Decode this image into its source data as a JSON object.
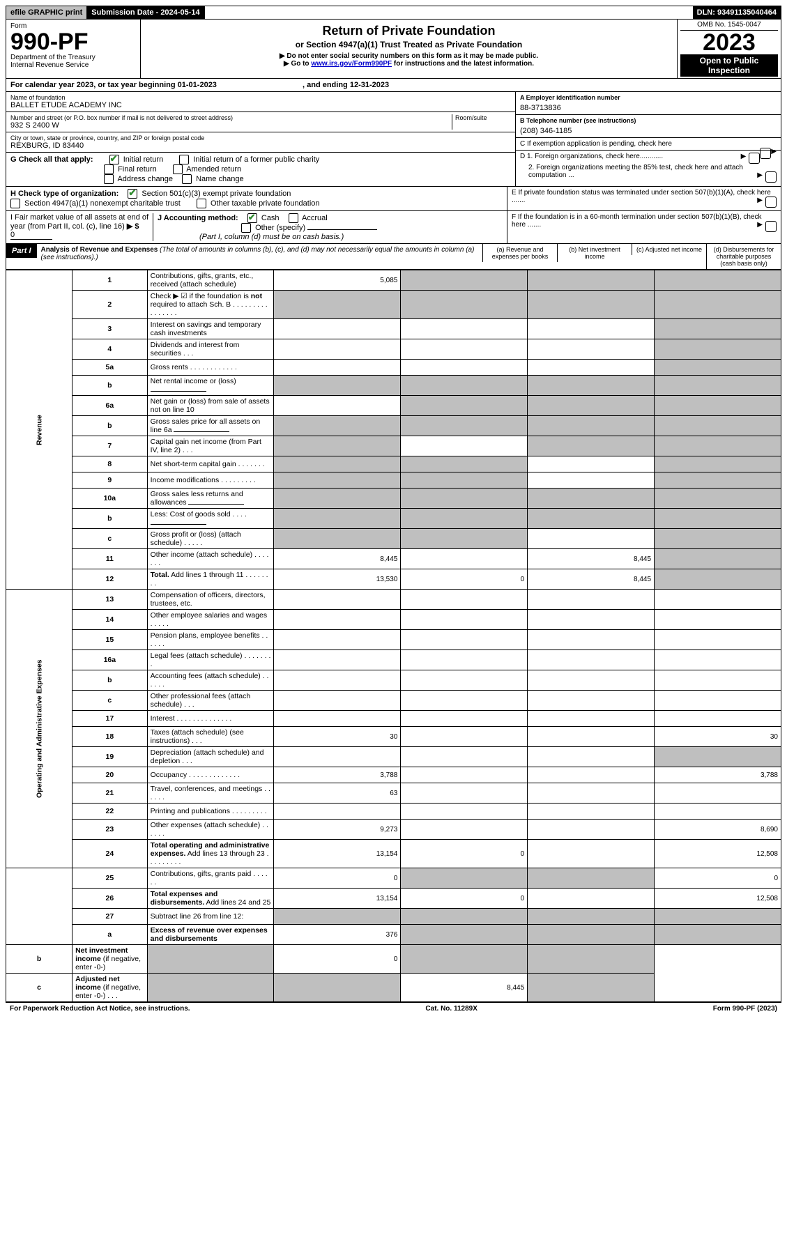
{
  "topbar": {
    "efile": "efile GRAPHIC print",
    "submission": "Submission Date - 2024-05-14",
    "dln": "DLN: 93491135040464"
  },
  "header": {
    "form_word": "Form",
    "form_no": "990-PF",
    "dept1": "Department of the Treasury",
    "dept2": "Internal Revenue Service",
    "title": "Return of Private Foundation",
    "subtitle": "or Section 4947(a)(1) Trust Treated as Private Foundation",
    "line1": "▶ Do not enter social security numbers on this form as it may be made public.",
    "line2_pre": "▶ Go to ",
    "line2_link": "www.irs.gov/Form990PF",
    "line2_post": " for instructions and the latest information.",
    "omb": "OMB No. 1545-0047",
    "year": "2023",
    "open": "Open to Public Inspection"
  },
  "calyear": {
    "text_pre": "For calendar year 2023, or tax year beginning ",
    "begin": "01-01-2023",
    "mid": " , and ending ",
    "end": "12-31-2023"
  },
  "foundation": {
    "name_label": "Name of foundation",
    "name": "BALLET ETUDE ACADEMY INC",
    "addr_label": "Number and street (or P.O. box number if mail is not delivered to street address)",
    "room_label": "Room/suite",
    "addr": "932 S 2400 W",
    "city_label": "City or town, state or province, country, and ZIP or foreign postal code",
    "city": "REXBURG, ID  83440"
  },
  "right_info": {
    "a_label": "A Employer identification number",
    "a_val": "88-3713836",
    "b_label": "B Telephone number (see instructions)",
    "b_val": "(208) 346-1185",
    "c_label": "C If exemption application is pending, check here",
    "d1": "D 1. Foreign organizations, check here............",
    "d2": "2. Foreign organizations meeting the 85% test, check here and attach computation ...",
    "e": "E  If private foundation status was terminated under section 507(b)(1)(A), check here .......",
    "f": "F  If the foundation is in a 60-month termination under section 507(b)(1)(B), check here .......",
    "arrow": "▶"
  },
  "g": {
    "label": "G Check all that apply:",
    "initial": "Initial return",
    "initial_former": "Initial return of a former public charity",
    "final": "Final return",
    "amended": "Amended return",
    "address": "Address change",
    "name": "Name change"
  },
  "h": {
    "label": "H Check type of organization:",
    "c3": "Section 501(c)(3) exempt private foundation",
    "4947": "Section 4947(a)(1) nonexempt charitable trust",
    "other_tax": "Other taxable private foundation"
  },
  "i": {
    "label": "I Fair market value of all assets at end of year (from Part II, col. (c), line 16)",
    "arrow": "▶ $",
    "val": "0"
  },
  "j": {
    "label": "J Accounting method:",
    "cash": "Cash",
    "accrual": "Accrual",
    "other": "Other (specify)",
    "note": "(Part I, column (d) must be on cash basis.)"
  },
  "part1": {
    "label": "Part I",
    "title": "Analysis of Revenue and Expenses",
    "note": "(The total of amounts in columns (b), (c), and (d) may not necessarily equal the amounts in column (a) (see instructions).)",
    "col_a": "(a)   Revenue and expenses per books",
    "col_b": "(b)   Net investment income",
    "col_c": "(c)   Adjusted net income",
    "col_d": "(d)   Disbursements for charitable purposes (cash basis only)"
  },
  "sections": {
    "revenue": "Revenue",
    "expenses": "Operating and Administrative Expenses"
  },
  "rows": [
    {
      "n": "1",
      "d": "Contributions, gifts, grants, etc., received (attach schedule)",
      "a": "5,085",
      "b": "s",
      "c": "s",
      "dd": "s"
    },
    {
      "n": "2",
      "d": "Check ▶ ☑ if the foundation is <b>not</b> required to attach Sch. B   .  .  .  .  .  .  .  .  .  .  .  .  .  .  .  .",
      "a": "s",
      "b": "s",
      "c": "s",
      "dd": "s"
    },
    {
      "n": "3",
      "d": "Interest on savings and temporary cash investments",
      "a": "",
      "b": "",
      "c": "",
      "dd": "s"
    },
    {
      "n": "4",
      "d": "Dividends and interest from securities   .   .   .",
      "a": "",
      "b": "",
      "c": "",
      "dd": "s"
    },
    {
      "n": "5a",
      "d": "Gross rents   .   .   .   .   .   .   .   .   .   .   .   .",
      "a": "",
      "b": "",
      "c": "",
      "dd": "s"
    },
    {
      "n": "b",
      "d": "Net rental income or (loss)  ",
      "a": "s",
      "b": "s",
      "c": "s",
      "dd": "s",
      "inline": true
    },
    {
      "n": "6a",
      "d": "Net gain or (loss) from sale of assets not on line 10",
      "a": "",
      "b": "s",
      "c": "s",
      "dd": "s"
    },
    {
      "n": "b",
      "d": "Gross sales price for all assets on line 6a ",
      "a": "s",
      "b": "s",
      "c": "s",
      "dd": "s",
      "inline": true
    },
    {
      "n": "7",
      "d": "Capital gain net income (from Part IV, line 2)   .   .   .",
      "a": "s",
      "b": "",
      "c": "s",
      "dd": "s"
    },
    {
      "n": "8",
      "d": "Net short-term capital gain   .   .   .   .   .   .   .",
      "a": "s",
      "b": "s",
      "c": "",
      "dd": "s"
    },
    {
      "n": "9",
      "d": "Income modifications   .   .   .   .   .   .   .   .   .",
      "a": "s",
      "b": "s",
      "c": "",
      "dd": "s"
    },
    {
      "n": "10a",
      "d": "Gross sales less returns and allowances",
      "a": "s",
      "b": "s",
      "c": "s",
      "dd": "s",
      "inline": true
    },
    {
      "n": "b",
      "d": "Less: Cost of goods sold   .   .   .   .",
      "a": "s",
      "b": "s",
      "c": "s",
      "dd": "s",
      "inline": true
    },
    {
      "n": "c",
      "d": "Gross profit or (loss) (attach schedule)   .   .   .   .   .",
      "a": "s",
      "b": "s",
      "c": "",
      "dd": "s"
    },
    {
      "n": "11",
      "d": "Other income (attach schedule)   .   .   .   .   .   .   .",
      "a": "8,445",
      "b": "",
      "c": "8,445",
      "dd": "s"
    },
    {
      "n": "12",
      "d": "<b>Total.</b> Add lines 1 through 11   .   .   .   .   .   .   .   .",
      "a": "13,530",
      "b": "0",
      "c": "8,445",
      "dd": "s"
    },
    {
      "n": "13",
      "d": "Compensation of officers, directors, trustees, etc.",
      "a": "",
      "b": "",
      "c": "",
      "dd": ""
    },
    {
      "n": "14",
      "d": "Other employee salaries and wages   .   .   .   .   .",
      "a": "",
      "b": "",
      "c": "",
      "dd": ""
    },
    {
      "n": "15",
      "d": "Pension plans, employee benefits   .   .   .   .   .   .",
      "a": "",
      "b": "",
      "c": "",
      "dd": ""
    },
    {
      "n": "16a",
      "d": "Legal fees (attach schedule)   .   .   .   .   .   .   .   .",
      "a": "",
      "b": "",
      "c": "",
      "dd": ""
    },
    {
      "n": "b",
      "d": "Accounting fees (attach schedule)   .   .   .   .   .   .",
      "a": "",
      "b": "",
      "c": "",
      "dd": ""
    },
    {
      "n": "c",
      "d": "Other professional fees (attach schedule)   .   .   .",
      "a": "",
      "b": "",
      "c": "",
      "dd": ""
    },
    {
      "n": "17",
      "d": "Interest   .   .   .   .   .   .   .   .   .   .   .   .   .   .",
      "a": "",
      "b": "",
      "c": "",
      "dd": ""
    },
    {
      "n": "18",
      "d": "Taxes (attach schedule) (see instructions)   .   .   .",
      "a": "30",
      "b": "",
      "c": "",
      "dd": "30"
    },
    {
      "n": "19",
      "d": "Depreciation (attach schedule) and depletion   .   .   .",
      "a": "",
      "b": "",
      "c": "",
      "dd": "s"
    },
    {
      "n": "20",
      "d": "Occupancy   .   .   .   .   .   .   .   .   .   .   .   .   .",
      "a": "3,788",
      "b": "",
      "c": "",
      "dd": "3,788"
    },
    {
      "n": "21",
      "d": "Travel, conferences, and meetings   .   .   .   .   .   .",
      "a": "63",
      "b": "",
      "c": "",
      "dd": ""
    },
    {
      "n": "22",
      "d": "Printing and publications   .   .   .   .   .   .   .   .   .",
      "a": "",
      "b": "",
      "c": "",
      "dd": ""
    },
    {
      "n": "23",
      "d": "Other expenses (attach schedule)   .   .   .   .   .   .",
      "a": "9,273",
      "b": "",
      "c": "",
      "dd": "8,690"
    },
    {
      "n": "24",
      "d": "<b>Total operating and administrative expenses.</b> Add lines 13 through 23   .   .   .   .   .   .   .   .   .",
      "a": "13,154",
      "b": "0",
      "c": "",
      "dd": "12,508"
    },
    {
      "n": "25",
      "d": "Contributions, gifts, grants paid   .   .   .   .   .   .",
      "a": "0",
      "b": "s",
      "c": "s",
      "dd": "0"
    },
    {
      "n": "26",
      "d": "<b>Total expenses and disbursements.</b> Add lines 24 and 25",
      "a": "13,154",
      "b": "0",
      "c": "",
      "dd": "12,508"
    },
    {
      "n": "27",
      "d": "Subtract line 26 from line 12:",
      "a": "s",
      "b": "s",
      "c": "s",
      "dd": "s"
    },
    {
      "n": "a",
      "d": "<b>Excess of revenue over expenses and disbursements</b>",
      "a": "376",
      "b": "s",
      "c": "s",
      "dd": "s"
    },
    {
      "n": "b",
      "d": "<b>Net investment income</b> (if negative, enter -0-)",
      "a": "s",
      "b": "0",
      "c": "s",
      "dd": "s"
    },
    {
      "n": "c",
      "d": "<b>Adjusted net income</b> (if negative, enter -0-)   .   .   .",
      "a": "s",
      "b": "s",
      "c": "8,445",
      "dd": "s"
    }
  ],
  "footer": {
    "left": "For Paperwork Reduction Act Notice, see instructions.",
    "center": "Cat. No. 11289X",
    "right": "Form 990-PF (2023)"
  }
}
